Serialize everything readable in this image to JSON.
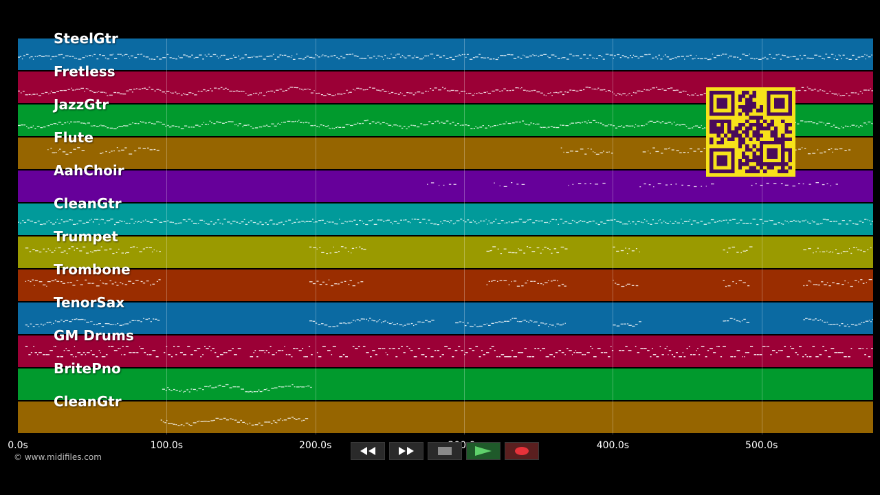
{
  "tracks": [
    {
      "name": "SteelGtr",
      "color": "#0b6aa2",
      "pattern": "dense",
      "segments": [
        [
          0,
          575
        ]
      ]
    },
    {
      "name": "Fretless",
      "color": "#9b0036",
      "pattern": "wavy",
      "segments": [
        [
          0,
          575
        ]
      ]
    },
    {
      "name": "JazzGtr",
      "color": "#019a2d",
      "pattern": "wavy",
      "segments": [
        [
          0,
          575
        ]
      ]
    },
    {
      "name": "Flute",
      "color": "#966500",
      "pattern": "sparse",
      "segments": [
        [
          20,
          45
        ],
        [
          55,
          95
        ],
        [
          365,
          400
        ],
        [
          420,
          560
        ]
      ]
    },
    {
      "name": "AahChoir",
      "color": "#66009a",
      "pattern": "dotted",
      "segments": [
        [
          275,
          295
        ],
        [
          320,
          340
        ],
        [
          370,
          398
        ],
        [
          418,
          470
        ],
        [
          493,
          550
        ]
      ]
    },
    {
      "name": "CleanGtr",
      "color": "#019a9a",
      "pattern": "dense",
      "segments": [
        [
          0,
          575
        ]
      ]
    },
    {
      "name": "Trumpet",
      "color": "#9a9a00",
      "pattern": "sparse",
      "segments": [
        [
          5,
          95
        ],
        [
          196,
          233
        ],
        [
          315,
          368
        ],
        [
          400,
          418
        ],
        [
          474,
          492
        ],
        [
          528,
          575
        ]
      ]
    },
    {
      "name": "Trombone",
      "color": "#9a2d00",
      "pattern": "sparse",
      "segments": [
        [
          5,
          95
        ],
        [
          196,
          233
        ],
        [
          315,
          368
        ],
        [
          400,
          418
        ],
        [
          474,
          492
        ],
        [
          528,
          575
        ]
      ]
    },
    {
      "name": "TenorSax",
      "color": "#0b6aa2",
      "pattern": "wavy",
      "segments": [
        [
          5,
          95
        ],
        [
          196,
          278
        ],
        [
          294,
          368
        ],
        [
          400,
          418
        ],
        [
          474,
          492
        ],
        [
          528,
          575
        ]
      ]
    },
    {
      "name": "GM Drums",
      "color": "#9b0036",
      "pattern": "drums",
      "segments": [
        [
          5,
          95
        ],
        [
          98,
          148
        ],
        [
          156,
          198
        ],
        [
          201,
          205
        ],
        [
          208,
          212
        ],
        [
          216,
          222
        ],
        [
          225,
          230
        ],
        [
          232,
          400
        ],
        [
          404,
          412
        ],
        [
          415,
          476
        ],
        [
          479,
          484
        ],
        [
          487,
          560
        ],
        [
          565,
          575
        ]
      ]
    },
    {
      "name": "BritePno",
      "color": "#019a2d",
      "pattern": "wavy",
      "segments": [
        [
          97,
          197
        ]
      ]
    },
    {
      "name": "CleanGtr",
      "color": "#966500",
      "pattern": "wavy",
      "segments": [
        [
          96,
          195
        ]
      ]
    }
  ],
  "axis": {
    "max_seconds": 575,
    "ticks": [
      {
        "value": 0,
        "label": "0.0s"
      },
      {
        "value": 100,
        "label": "100.0s"
      },
      {
        "value": 200,
        "label": "200.0s"
      },
      {
        "value": 300,
        "label": "300.0s"
      },
      {
        "value": 400,
        "label": "400.0s"
      },
      {
        "value": 500,
        "label": "500.0s"
      }
    ]
  },
  "copyright": "© www.midifiles.com",
  "qr": {
    "fg": "#4a0b5a",
    "bg": "#f7e21a"
  },
  "transport": {
    "rewind_icon": "rewind-icon",
    "forward_icon": "fast-forward-icon",
    "stop_icon": "stop-icon",
    "play_icon": "play-icon",
    "record_icon": "record-icon"
  }
}
